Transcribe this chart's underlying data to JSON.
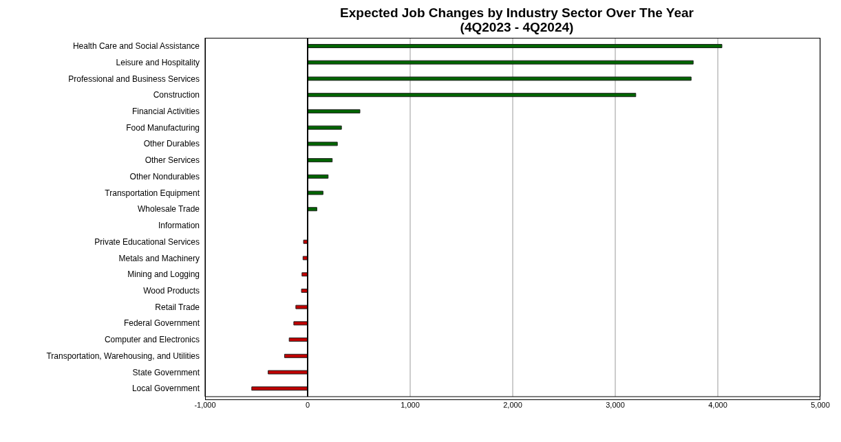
{
  "chart_data": {
    "type": "bar",
    "orientation": "horizontal",
    "title": "Expected Job Changes by Industry Sector Over The Year\n(4Q2023 - 4Q2024)",
    "categories": [
      "Health Care and Social Assistance",
      "Leisure and Hospitality",
      "Professional and Business Services",
      "Construction",
      "Financial Activities",
      "Food Manufacturing",
      "Other Durables",
      "Other Services",
      "Other Nondurables",
      "Transportation Equipment",
      "Wholesale Trade",
      "Information",
      "Private Educational Services",
      "Metals and Machinery",
      "Mining and Logging",
      "Wood Products",
      "Retail Trade",
      "Federal Government",
      "Computer and Electronics",
      "Transportation, Warehousing, and Utilities",
      "State Government",
      "Local Government"
    ],
    "values": [
      4040,
      3760,
      3740,
      3200,
      510,
      330,
      290,
      240,
      200,
      150,
      90,
      0,
      -40,
      -45,
      -55,
      -60,
      -115,
      -135,
      -180,
      -225,
      -385,
      -545
    ],
    "colors": [
      "#006400",
      "#006400",
      "#006400",
      "#006400",
      "#006400",
      "#006400",
      "#006400",
      "#006400",
      "#006400",
      "#006400",
      "#006400",
      "#006400",
      "#c00000",
      "#c00000",
      "#c00000",
      "#c00000",
      "#c00000",
      "#c00000",
      "#c00000",
      "#c00000",
      "#c00000",
      "#c00000"
    ],
    "xlim": [
      -1000,
      5000
    ],
    "xticks": [
      {
        "value": -1000,
        "label": "-1,000"
      },
      0,
      {
        "value": 1000,
        "label": "1,000"
      },
      {
        "value": 2000,
        "label": "2,000"
      },
      {
        "value": 3000,
        "label": "3,000"
      },
      {
        "value": 4000,
        "label": "4,000"
      },
      {
        "value": 5000,
        "label": "5,000"
      }
    ],
    "grid": "x"
  }
}
